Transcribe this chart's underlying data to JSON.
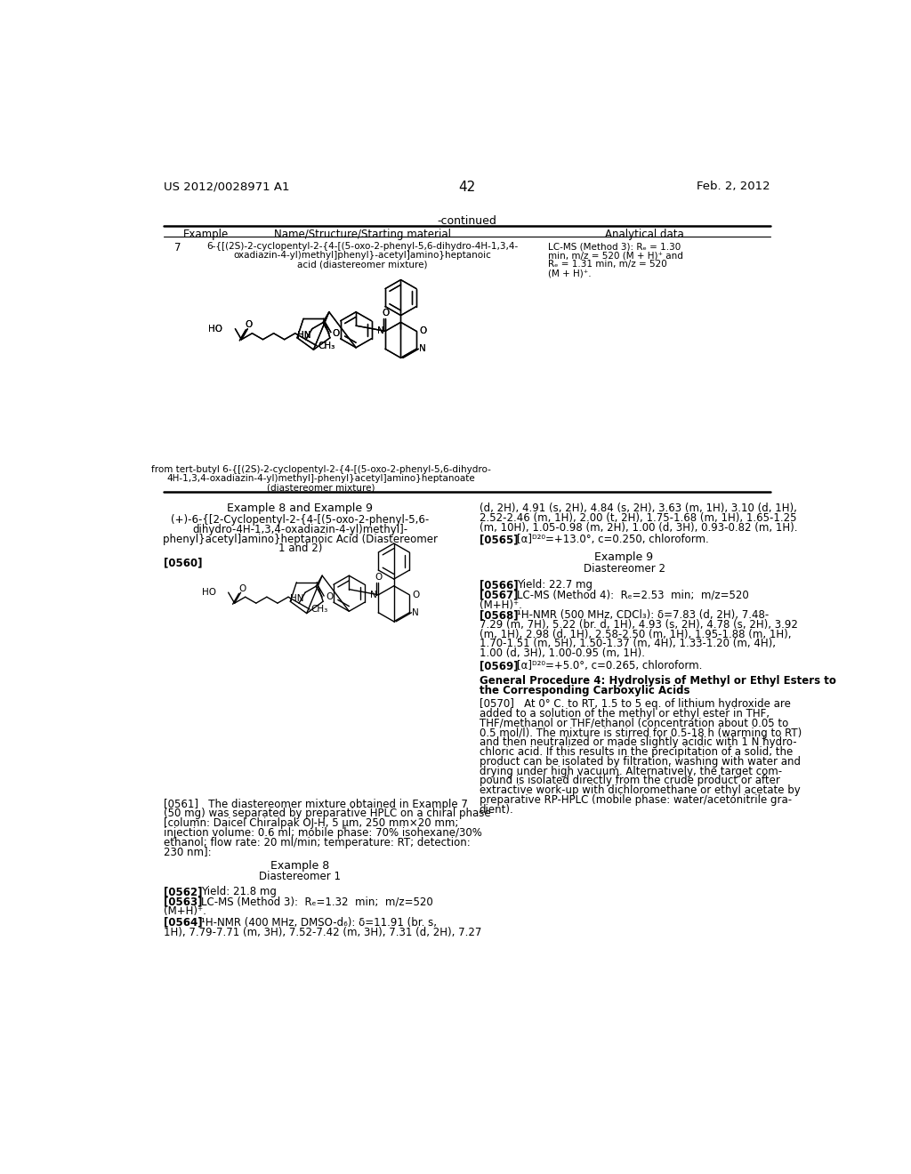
{
  "page_number": "42",
  "top_left": "US 2012/0028971 A1",
  "top_right": "Feb. 2, 2012",
  "background_color": "#ffffff",
  "text_color": "#000000",
  "table_header_continued": "-continued",
  "table_col1": "Example",
  "table_col2": "Name/Structure/Starting material",
  "table_col3": "Analytical data",
  "example7_num": "7",
  "example7_name_l1": "6-{[(2S)-2-cyclopentyl-2-{4-[(5-oxo-2-phenyl-5,6-dihydro-4H-1,3,4-",
  "example7_name_l2": "oxadiazin-4-yl)methyl]phenyl}-acetyl]amino}heptanoic",
  "example7_name_l3": "acid (diastereomer mixture)",
  "example7_data_l1": "LC-MS (Method 3): Rₑ = 1.30",
  "example7_data_l2": "min, m/z = 520 (M + H)⁺ and",
  "example7_data_l3": "Rₑ = 1.31 min, m/z = 520",
  "example7_data_l4": "(M + H)⁺.",
  "example7_from_l1": "from tert-butyl 6-{[(2S)-2-cyclopentyl-2-{4-[(5-oxo-2-phenyl-5,6-dihydro-",
  "example7_from_l2": "4H-1,3,4-oxadiazin-4-yl)methyl]-phenyl}acetyl]amino}heptanoate",
  "example7_from_l3": "(diastereomer mixture)",
  "ex8_9_title": "Example 8 and Example 9",
  "ex8_9_name_l1": "(+)-6-{[2-Cyclopentyl-2-{4-[(5-oxo-2-phenyl-5,6-",
  "ex8_9_name_l2": "dihydro-4H-1,3,4-oxadiazin-4-yl)methyl]-",
  "ex8_9_name_l3": "phenyl}acetyl]amino}heptanoic Acid (Diastereomer",
  "ex8_9_name_l4": "1 and 2)",
  "para0560": "[0560]",
  "right_nmr_l1": "(d, 2H), 4.91 (s, 2H), 4.84 (s, 2H), 3.63 (m, 1H), 3.10 (d, 1H),",
  "right_nmr_l2": "2.52-2.46 (m, 1H), 2.00 (t, 2H), 1.75-1.68 (m, 1H), 1.65-1.25",
  "right_nmr_l3": "(m, 10H), 1.05-0.98 (m, 2H), 1.00 (d, 3H), 0.93-0.82 (m, 1H).",
  "para0565": "[0565]",
  "para0565_text": "[α]ᴰ²⁰=+13.0°, c=0.250, chloroform.",
  "ex9_title": "Example 9",
  "ex9_sub": "Diastereomer 2",
  "para0566": "[0566]",
  "para0566_text": "Yield: 22.7 mg",
  "para0567": "[0567]",
  "para0567_text": "LC-MS (Method 4):  Rₑ=2.53  min;  m/z=520",
  "para0567_text2": "(M+H)⁺.",
  "para0568": "[0568]",
  "para0568_text_l1": "¹H-NMR (500 MHz, CDCl₃): δ=7.83 (d, 2H), 7.48-",
  "para0568_text_l2": "7.29 (m, 7H), 5.22 (br. d, 1H), 4.93 (s, 2H), 4.78 (s, 2H), 3.92",
  "para0568_text_l3": "(m, 1H), 2.98 (d, 1H), 2.58-2.50 (m, 1H), 1.95-1.88 (m, 1H),",
  "para0568_text_l4": "1.70-1.51 (m, 5H), 1.50-1.37 (m, 4H), 1.33-1.20 (m, 4H),",
  "para0568_text_l5": "1.00 (d, 3H), 1.00-0.95 (m, 1H).",
  "para0569": "[0569]",
  "para0569_text": "[α]ᴰ²⁰=+5.0°, c=0.265, chloroform.",
  "para0561_l1": "[0561]   The diastereomer mixture obtained in Example 7",
  "para0561_l2": "(50 mg) was separated by preparative HPLC on a chiral phase",
  "para0561_l3": "[column: Daicel Chiralpak OJ-H, 5 μm, 250 mm×20 mm;",
  "para0561_l4": "injection volume: 0.6 ml; mobile phase: 70% isohexane/30%",
  "para0561_l5": "ethanol; flow rate: 20 ml/min; temperature: RT; detection:",
  "para0561_l6": "230 nm]:",
  "ex8_sub_title": "Example 8",
  "ex8_sub_sub": "Diastereomer 1",
  "para0562": "[0562]",
  "para0562_text": "Yield: 21.8 mg",
  "para0563": "[0563]",
  "para0563_text": "LC-MS (Method 3):  Rₑ=1.32  min;  m/z=520",
  "para0563_text2": "(M+H)⁺.",
  "para0564": "[0564]",
  "para0564_text_l1": "¹H-NMR (400 MHz, DMSO-d₆): δ=11.91 (br. s,",
  "para0564_text_l2": "1H), 7.79-7.71 (m, 3H), 7.52-7.42 (m, 3H), 7.31 (d, 2H), 7.27",
  "gen_proc_title_l1": "General Procedure 4: Hydrolysis of Methyl or Ethyl Esters to",
  "gen_proc_title_l2": "the Corresponding Carboxylic Acids",
  "para0570_l1": "[0570]   At 0° C. to RT, 1.5 to 5 eq. of lithium hydroxide are",
  "para0570_l2": "added to a solution of the methyl or ethyl ester in THF,",
  "para0570_l3": "THF/methanol or THF/ethanol (concentration about 0.05 to",
  "para0570_l4": "0.5 mol/l). The mixture is stirred for 0.5-18 h (warming to RT)",
  "para0570_l5": "and then neutralized or made slightly acidic with 1 N hydro-",
  "para0570_l6": "chloric acid. If this results in the precipitation of a solid, the",
  "para0570_l7": "product can be isolated by filtration, washing with water and",
  "para0570_l8": "drying under high vacuum. Alternatively, the target com-",
  "para0570_l9": "pound is isolated directly from the crude product or after",
  "para0570_l10": "extractive work-up with dichloromethane or ethyl acetate by",
  "para0570_l11": "preparative RP-HPLC (mobile phase: water/acetonitrile gra-",
  "para0570_l12": "dient)."
}
